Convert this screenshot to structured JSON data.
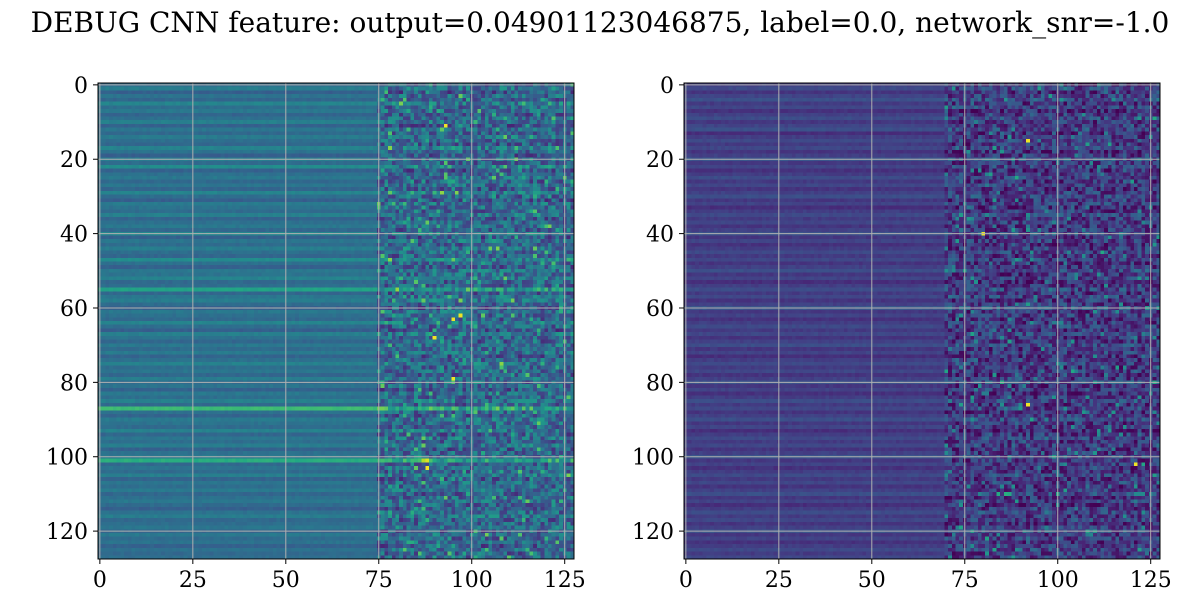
{
  "title": "DEBUG CNN feature: output=0.04901123046875, label=0.0, network_snr=-1.0",
  "chart_data": [
    {
      "type": "heatmap",
      "rows": 128,
      "cols": 128,
      "colormap": "viridis",
      "xlim": [
        0,
        127
      ],
      "ylim": [
        127,
        0
      ],
      "xticks": [
        0,
        25,
        50,
        75,
        100,
        125
      ],
      "yticks": [
        0,
        20,
        40,
        60,
        80,
        100,
        120
      ],
      "grid": true,
      "row_brightness": [
        0.35,
        0.42,
        0.3,
        0.38,
        0.33,
        0.45,
        0.36,
        0.4,
        0.32,
        0.37,
        0.43,
        0.31,
        0.39,
        0.34,
        0.41,
        0.36,
        0.33,
        0.44,
        0.38,
        0.3,
        0.42,
        0.35,
        0.48,
        0.31,
        0.37,
        0.4,
        0.34,
        0.39,
        0.33,
        0.45,
        0.36,
        0.3,
        0.41,
        0.38,
        0.35,
        0.43,
        0.32,
        0.37,
        0.4,
        0.34,
        0.46,
        0.31,
        0.39,
        0.35,
        0.42,
        0.36,
        0.33,
        0.48,
        0.37,
        0.31,
        0.4,
        0.38,
        0.44,
        0.34,
        0.36,
        0.58,
        0.33,
        0.39,
        0.42,
        0.35,
        0.31,
        0.4,
        0.37,
        0.34,
        0.45,
        0.36,
        0.3,
        0.43,
        0.38,
        0.33,
        0.4,
        0.35,
        0.41,
        0.32,
        0.37,
        0.44,
        0.36,
        0.39,
        0.33,
        0.42,
        0.35,
        0.38,
        0.31,
        0.4,
        0.36,
        0.43,
        0.34,
        0.68,
        0.37,
        0.32,
        0.41,
        0.38,
        0.35,
        0.44,
        0.33,
        0.39,
        0.36,
        0.42,
        0.31,
        0.37,
        0.4,
        0.62,
        0.34,
        0.38,
        0.35,
        0.43,
        0.32,
        0.39,
        0.36,
        0.41,
        0.33,
        0.37,
        0.4,
        0.35,
        0.3,
        0.38,
        0.42,
        0.34,
        0.36,
        0.39,
        0.33,
        0.4,
        0.35,
        0.38,
        0.31,
        0.37,
        0.34,
        0.36
      ],
      "noise_start_col": 75,
      "noise_level": 0.18,
      "hotspots": [
        [
          11,
          93
        ],
        [
          63,
          95
        ],
        [
          68,
          90
        ],
        [
          62,
          97
        ],
        [
          103,
          88
        ],
        [
          79,
          95
        ]
      ]
    },
    {
      "type": "heatmap",
      "rows": 128,
      "cols": 128,
      "colormap": "viridis",
      "xlim": [
        0,
        127
      ],
      "ylim": [
        127,
        0
      ],
      "xticks": [
        0,
        25,
        50,
        75,
        100,
        125
      ],
      "yticks": [
        0,
        20,
        40,
        60,
        80,
        100,
        120
      ],
      "grid": true,
      "row_brightness": [
        0.18,
        0.22,
        0.15,
        0.2,
        0.25,
        0.17,
        0.21,
        0.14,
        0.19,
        0.23,
        0.16,
        0.2,
        0.24,
        0.13,
        0.18,
        0.22,
        0.17,
        0.21,
        0.15,
        0.19,
        0.26,
        0.16,
        0.2,
        0.14,
        0.18,
        0.23,
        0.17,
        0.21,
        0.15,
        0.19,
        0.24,
        0.16,
        0.2,
        0.13,
        0.18,
        0.22,
        0.17,
        0.21,
        0.15,
        0.19,
        0.25,
        0.16,
        0.2,
        0.14,
        0.18,
        0.22,
        0.17,
        0.21,
        0.15,
        0.19,
        0.24,
        0.16,
        0.2,
        0.13,
        0.18,
        0.23,
        0.17,
        0.21,
        0.15,
        0.19,
        0.26,
        0.16,
        0.2,
        0.14,
        0.18,
        0.22,
        0.17,
        0.21,
        0.15,
        0.19,
        0.24,
        0.16,
        0.2,
        0.13,
        0.18,
        0.22,
        0.17,
        0.21,
        0.15,
        0.19,
        0.25,
        0.16,
        0.2,
        0.14,
        0.18,
        0.23,
        0.17,
        0.21,
        0.15,
        0.19,
        0.24,
        0.16,
        0.2,
        0.13,
        0.18,
        0.22,
        0.17,
        0.21,
        0.15,
        0.19,
        0.26,
        0.16,
        0.2,
        0.14,
        0.18,
        0.22,
        0.17,
        0.21,
        0.15,
        0.19,
        0.24,
        0.16,
        0.2,
        0.13,
        0.18,
        0.23,
        0.17,
        0.21,
        0.15,
        0.19,
        0.25,
        0.16,
        0.2,
        0.14,
        0.18,
        0.22,
        0.17,
        0.21
      ],
      "noise_start_col": 70,
      "noise_level": 0.16,
      "hotspots": [
        [
          15,
          92
        ],
        [
          86,
          92
        ],
        [
          40,
          80
        ],
        [
          102,
          121
        ]
      ]
    }
  ]
}
